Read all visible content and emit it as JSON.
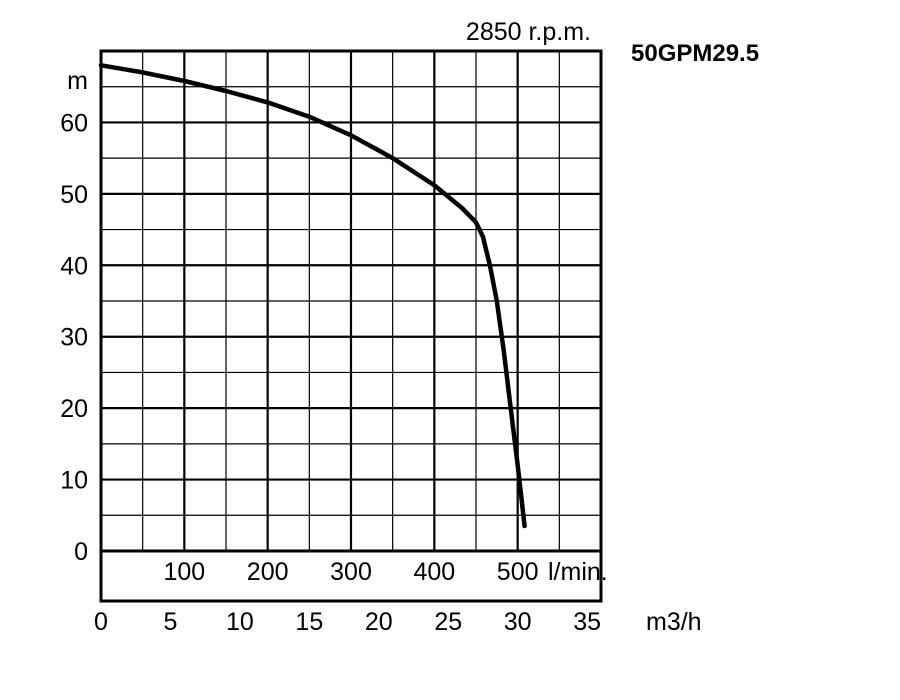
{
  "chart_data": {
    "type": "line",
    "title": "50GPM29.5",
    "speed_label": "2850 r.p.m.",
    "ylabel": "m",
    "x_unit_bottom": "m3/h",
    "x_unit_top": "l/min.",
    "ylim": [
      -7,
      70
    ],
    "xlim": [
      0,
      36
    ],
    "y_ticks": [
      "0",
      "10",
      "20",
      "30",
      "40",
      "50",
      "60"
    ],
    "x_ticks_m3h": [
      "0",
      "5",
      "10",
      "15",
      "20",
      "25",
      "30",
      "35"
    ],
    "x_ticks_lmin": [
      "100",
      "200",
      "300",
      "400",
      "500"
    ],
    "grid": true,
    "series": [
      {
        "x": [
          0,
          3,
          6,
          9,
          12,
          15,
          18,
          21,
          24,
          26,
          27,
          27.5,
          28,
          28.5,
          29,
          29.5,
          30,
          30.5
        ],
        "y": [
          68,
          67,
          65.8,
          64.4,
          62.8,
          60.8,
          58.2,
          55,
          51.2,
          48,
          46,
          44,
          40,
          35,
          28,
          20,
          12,
          3.5
        ]
      }
    ]
  }
}
